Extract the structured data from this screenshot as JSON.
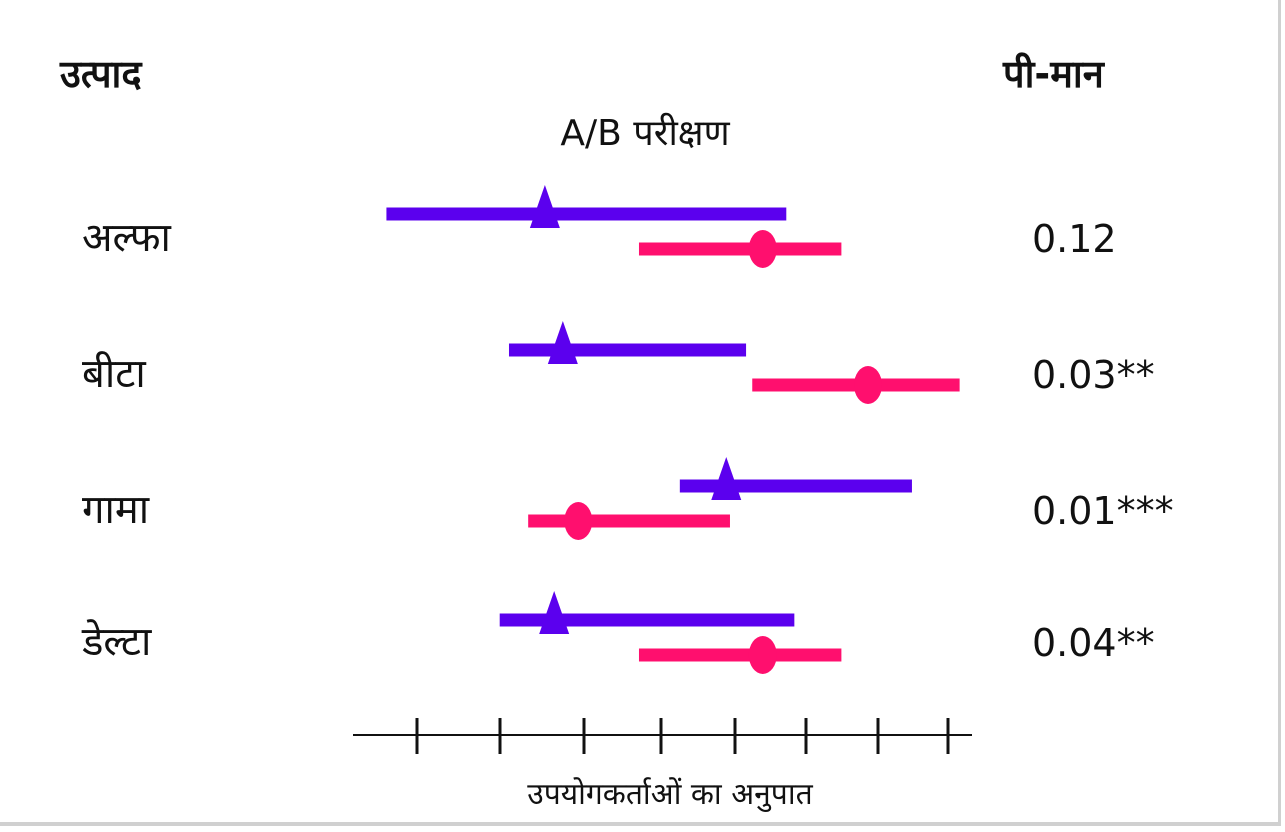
{
  "headers": {
    "left": "उत्पाद",
    "right": "पी-मान"
  },
  "chart_data": {
    "type": "forest",
    "title": "A/B परीक्षण",
    "xlabel": "उपयोगकर्ताओं का अनुपात",
    "x_ticks": 8,
    "x_range": [
      0,
      1
    ],
    "colors": {
      "series_a": "#5b00ee",
      "series_b": "#ff0f6e"
    },
    "series": [
      {
        "marker": "triangle",
        "color_key": "series_a"
      },
      {
        "marker": "circle",
        "color_key": "series_b"
      }
    ],
    "rows": [
      {
        "label": "अल्फा",
        "p_value": "0.12",
        "a": {
          "low": 0.054,
          "point": 0.31,
          "high": 0.7
        },
        "b": {
          "low": 0.462,
          "point": 0.662,
          "high": 0.789
        }
      },
      {
        "label": "बीटा",
        "p_value": "0.03**",
        "a": {
          "low": 0.252,
          "point": 0.339,
          "high": 0.635
        },
        "b": {
          "low": 0.645,
          "point": 0.832,
          "high": 0.98
        }
      },
      {
        "label": "गामा",
        "p_value": "0.01***",
        "a": {
          "low": 0.528,
          "point": 0.603,
          "high": 0.903
        },
        "b": {
          "low": 0.283,
          "point": 0.364,
          "high": 0.609
        }
      },
      {
        "label": "डेल्टा",
        "p_value": "0.04**",
        "a": {
          "low": 0.237,
          "point": 0.325,
          "high": 0.713
        },
        "b": {
          "low": 0.462,
          "point": 0.662,
          "high": 0.789
        }
      }
    ]
  }
}
